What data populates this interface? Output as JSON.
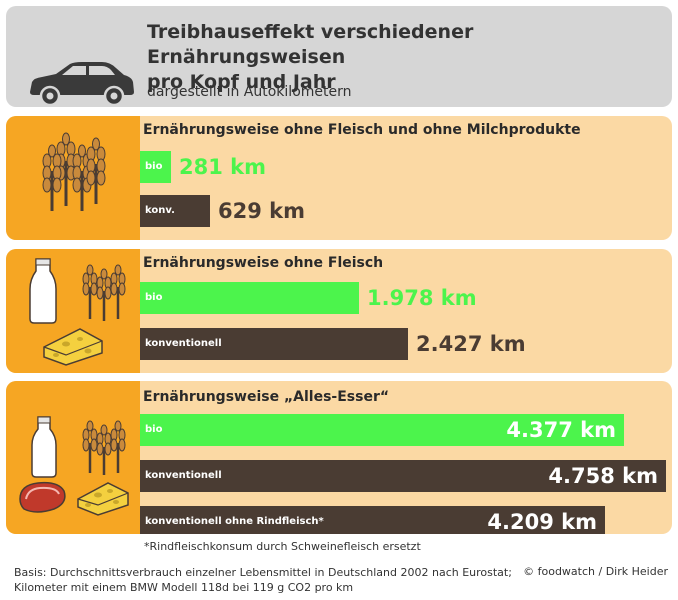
{
  "header": {
    "title_line1": "Treibhauseffekt verschiedener Ernährungsweisen",
    "title_line2": "pro Kopf und Jahr",
    "subtitle": "dargestellt in Autokilometern"
  },
  "chart_data": {
    "type": "bar",
    "title": "Treibhauseffekt verschiedener Ernährungsweisen pro Kopf und Jahr",
    "subtitle": "dargestellt in Autokilometern",
    "unit": "km",
    "groups": [
      {
        "title": "Ernährungsweise ohne Fleisch und ohne Milchprodukte",
        "bars": [
          {
            "label": "bio",
            "value": 281,
            "display": "281 km",
            "kind": "bio"
          },
          {
            "label": "konv.",
            "value": 629,
            "display": "629 km",
            "kind": "konv"
          }
        ]
      },
      {
        "title": "Ernährungsweise ohne Fleisch",
        "bars": [
          {
            "label": "bio",
            "value": 1978,
            "display": "1.978 km",
            "kind": "bio"
          },
          {
            "label": "konventionell",
            "value": 2427,
            "display": "2.427 km",
            "kind": "konv"
          }
        ]
      },
      {
        "title": "Ernährungsweise „Alles-Esser“",
        "bars": [
          {
            "label": "bio",
            "value": 4377,
            "display": "4.377 km",
            "kind": "bio"
          },
          {
            "label": "konventionell",
            "value": 4758,
            "display": "4.758 km",
            "kind": "konv"
          },
          {
            "label": "konventionell ohne Rindfleisch*",
            "value": 4209,
            "display": "4.209 km",
            "kind": "konv"
          }
        ]
      }
    ],
    "colors": {
      "bio": "#4cf44c",
      "konv": "#4a3c33",
      "panel": "#fbd9a4",
      "icon_panel": "#f6a623",
      "header": "#d6d6d6"
    }
  },
  "footnote": "*Rindfleischkonsum durch Schweinefleisch ersetzt",
  "source_line1": "Basis: Durchschnittsverbrauch einzelner Lebensmittel in Deutschland 2002 nach Eurostat;",
  "source_line2": "Kilometer mit einem BMW Modell 118d bei 119 g CO2 pro km",
  "credit": "© foodwatch / Dirk Heider",
  "icons": [
    "car-icon",
    "wheat-icon",
    "milk-bottle-icon",
    "cheese-icon",
    "steak-icon"
  ]
}
